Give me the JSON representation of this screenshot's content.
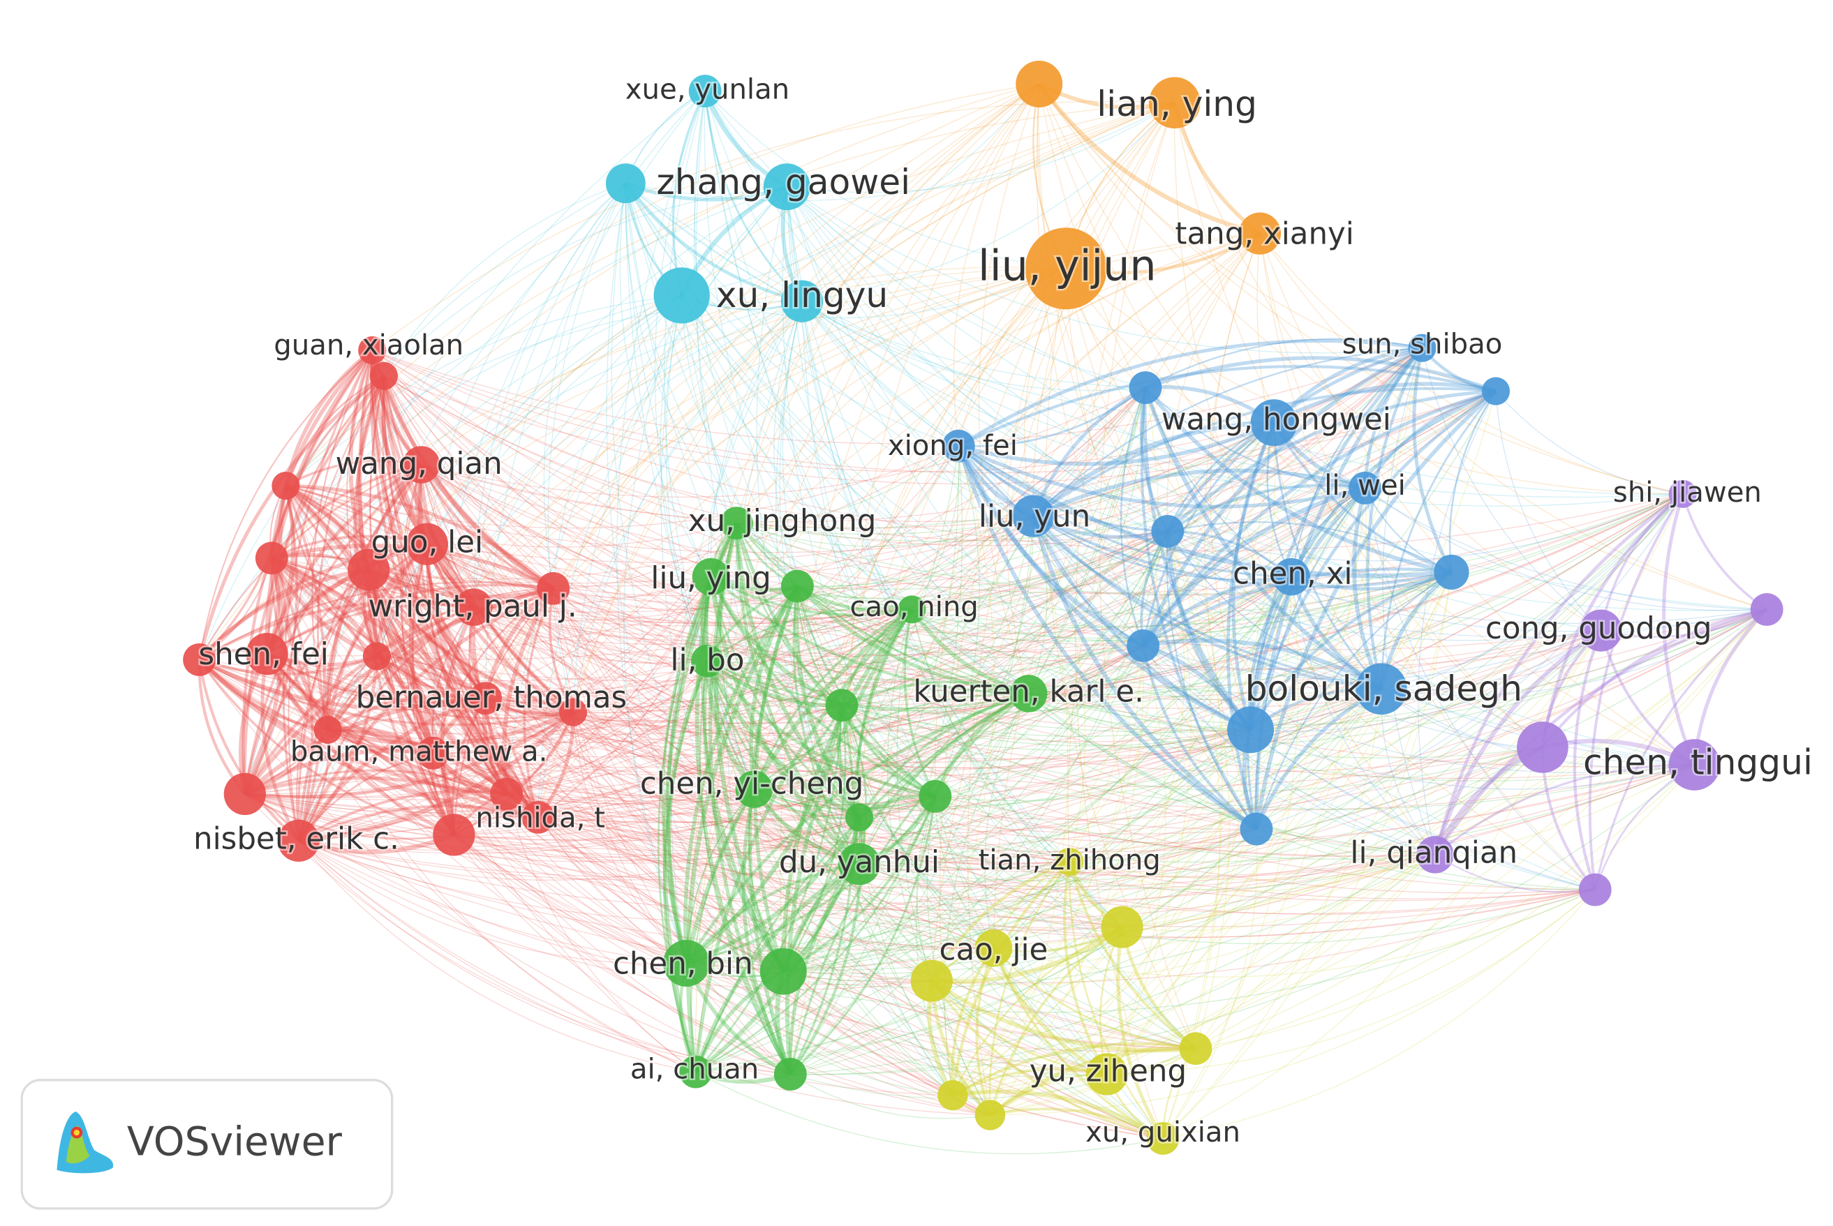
{
  "clusters": [
    {
      "color": "#40c3dc",
      "nodes": [
        "xue, yunlan",
        "zhang, gaowei",
        "xu, lingyu"
      ]
    },
    {
      "color": "#f39a2c",
      "nodes": [
        "lian, ying",
        "liu, yijun",
        "tang, xianyi"
      ]
    },
    {
      "color": "#e8504e",
      "nodes": [
        "guan, xiaolan",
        "wang, qian",
        "guo, lei",
        "wright, paul j.",
        "shen, fei",
        "bernauer, thomas",
        "baum, matthew a.",
        "nishida, t",
        "nisbet, erik c."
      ]
    },
    {
      "color": "#45b943",
      "nodes": [
        "xu, jinghong",
        "liu, ying",
        "cao, ning",
        "li, bo",
        "kuerten, karl e.",
        "chen, yi-cheng",
        "du, yanhui",
        "chen, bin",
        "ai, chuan"
      ]
    },
    {
      "color": "#d2d22c",
      "nodes": [
        "tian, zhihong",
        "cao, jie",
        "yu, ziheng",
        "xu, guixian"
      ]
    },
    {
      "color": "#4a98d8",
      "nodes": [
        "sun, shibao",
        "xiong, fei",
        "wang, hongwei",
        "li, wei",
        "liu, yun",
        "chen, xi",
        "bolouki, sadegh"
      ]
    },
    {
      "color": "#a87fde",
      "nodes": [
        "shi, jiawen",
        "cong, guodong",
        "chen, tinggui",
        "li, qianqian"
      ]
    }
  ],
  "logo": {
    "text": "VOSviewer"
  }
}
